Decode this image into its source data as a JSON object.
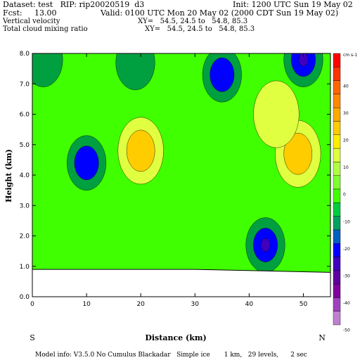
{
  "header": {
    "dataset_line": "Dataset: test   RIP: rip20020519  d3",
    "init_line": "Init: 1200 UTC Sun 19 May 02",
    "fcst_line": "Fcst:     13.00",
    "valid_line": "Valid: 0100 UTC Mon 20 May 02 (2000 CDT Sun 19 May 02)",
    "field1_name": "Vertical velocity",
    "field1_xy": "XY=   54.5, 24.5 to   54.8, 85.3",
    "field2_name": "Total cloud mixing ratio",
    "field2_xy": "XY=   54.5, 24.5 to   54.8, 85.3"
  },
  "footer": {
    "model_info": "Model info: V3.5.0 No Cumulus Blackadar   Simple ice       1 km,   29 levels,      2 sec"
  },
  "chart_data": {
    "type": "heatmap",
    "title": "Vertical velocity",
    "xlabel": "Distance (km)",
    "ylabel": "Height (km)",
    "xlim": [
      0,
      55
    ],
    "ylim": [
      0,
      8
    ],
    "x_ticks": [
      0,
      10,
      20,
      30,
      40,
      50
    ],
    "y_ticks": [
      "0.0",
      "1.0",
      "2.0",
      "3.0",
      "4.0",
      "5.0",
      "6.0",
      "7.0",
      "8.0"
    ],
    "x_end_labels": {
      "left": "S",
      "right": "N"
    },
    "colorbar": {
      "units": "cm s-1",
      "tick_labels": [
        "40",
        "30",
        "20",
        "10",
        "0",
        "-10",
        "-20",
        "-30",
        "-40",
        "-50"
      ],
      "colors": [
        "#ff0000",
        "#ff3300",
        "#ff6600",
        "#ff8800",
        "#ffaa00",
        "#ffcc00",
        "#ffee00",
        "#e0ff40",
        "#b0ff40",
        "#80ff30",
        "#40ff00",
        "#00cc40",
        "#00a060",
        "#0060c0",
        "#0000ff",
        "#4000c0",
        "#6000a0",
        "#8000a0",
        "#a040c0",
        "#c080d0"
      ]
    },
    "contour_levels": [
      -30,
      -20,
      -10,
      0,
      10,
      20
    ],
    "features": [
      {
        "label": "updraft",
        "x": 20,
        "y": 4.8,
        "value": 20
      },
      {
        "label": "updraft",
        "x": 49,
        "y": 4.7,
        "value": 20
      },
      {
        "label": "updraft",
        "x": 45,
        "y": 6.0,
        "value": 10
      },
      {
        "label": "downdraft",
        "x": 10,
        "y": 4.4,
        "value": -20
      },
      {
        "label": "downdraft",
        "x": 35,
        "y": 7.3,
        "value": -20
      },
      {
        "label": "downdraft",
        "x": 43,
        "y": 1.7,
        "value": -30
      },
      {
        "label": "downdraft",
        "x": 50,
        "y": 7.8,
        "value": -30
      },
      {
        "label": "downdraft",
        "x": 2,
        "y": 7.8,
        "value": -10
      },
      {
        "label": "downdraft",
        "x": 19,
        "y": 7.7,
        "value": -10
      }
    ],
    "terrain_height_km": 0.9
  }
}
